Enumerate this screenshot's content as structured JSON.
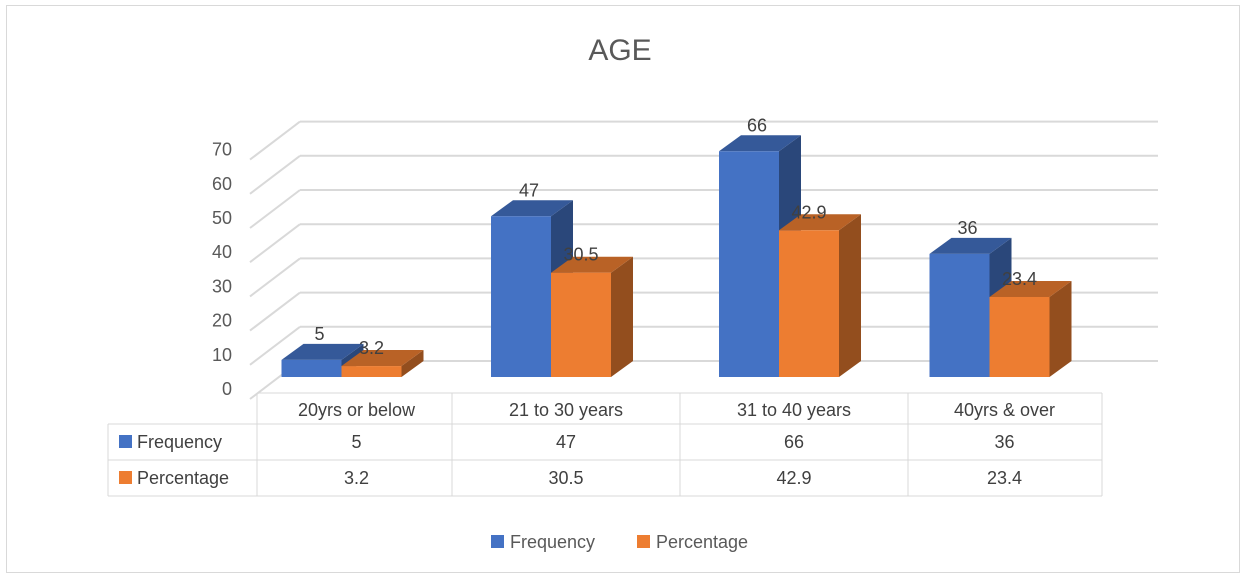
{
  "chart_data": {
    "type": "bar",
    "title": "AGE",
    "categories": [
      "20yrs or below",
      "21 to 30 years",
      "31 to 40 years",
      "40yrs & over"
    ],
    "series": [
      {
        "name": "Frequency",
        "values": [
          5,
          47,
          66,
          36
        ],
        "color": "#4472c4"
      },
      {
        "name": "Percentage",
        "values": [
          3.2,
          30.5,
          42.9,
          23.4
        ],
        "color": "#ed7d31"
      }
    ],
    "ylim": [
      0,
      70
    ],
    "yticks": [
      "0",
      "10",
      "20",
      "30",
      "40",
      "50",
      "60",
      "70"
    ],
    "data_labels": [
      [
        "5",
        "47",
        "66",
        "36"
      ],
      [
        "3.2",
        "30.5",
        "42.9",
        "23.4"
      ]
    ],
    "table_values": [
      [
        "5",
        "47",
        "66",
        "36"
      ],
      [
        "3.2",
        "30.5",
        "42.9",
        "23.4"
      ]
    ],
    "grid": true,
    "legend": "bottom",
    "style": "3d-clustered-column-with-data-table"
  }
}
